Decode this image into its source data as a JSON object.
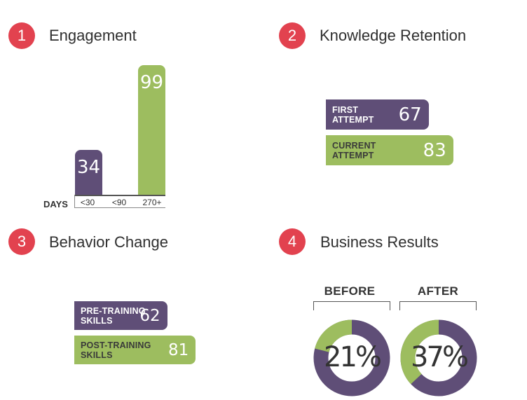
{
  "sections": [
    {
      "number": "1",
      "title": "Engagement"
    },
    {
      "number": "2",
      "title": "Knowledge Retention"
    },
    {
      "number": "3",
      "title": "Behavior Change"
    },
    {
      "number": "4",
      "title": "Business Results"
    }
  ],
  "colors": {
    "badge": "#e2424f",
    "purple": "#5f4e77",
    "green": "#9dbd5f",
    "donut_track": "#5f4e77",
    "donut_fill": "#9dbd5f"
  },
  "chart_data": [
    {
      "type": "bar",
      "title": "Engagement",
      "xlabel": "DAYS",
      "categories": [
        "<30",
        "<90",
        "270+"
      ],
      "values": [
        34,
        null,
        99
      ],
      "value_labels": [
        "34",
        "",
        "99"
      ],
      "bar_colors": [
        "purple",
        "",
        "green"
      ]
    },
    {
      "type": "bar",
      "orientation": "horizontal",
      "title": "Knowledge Retention",
      "categories": [
        "FIRST ATTEMPT",
        "CURRENT ATTEMPT"
      ],
      "values": [
        67,
        83
      ],
      "value_labels": [
        "67",
        "83"
      ],
      "bar_colors": [
        "purple",
        "green"
      ]
    },
    {
      "type": "bar",
      "orientation": "horizontal",
      "title": "Behavior Change",
      "categories": [
        "PRE-TRAINING SKILLS",
        "POST-TRAINING SKILLS"
      ],
      "values": [
        62,
        81
      ],
      "value_labels": [
        "62",
        "81"
      ],
      "bar_colors": [
        "purple",
        "green"
      ]
    },
    {
      "type": "pie",
      "title": "Business Results",
      "categories": [
        "BEFORE",
        "AFTER"
      ],
      "values": [
        21,
        37
      ],
      "value_labels": [
        "21%",
        "37%"
      ]
    }
  ]
}
